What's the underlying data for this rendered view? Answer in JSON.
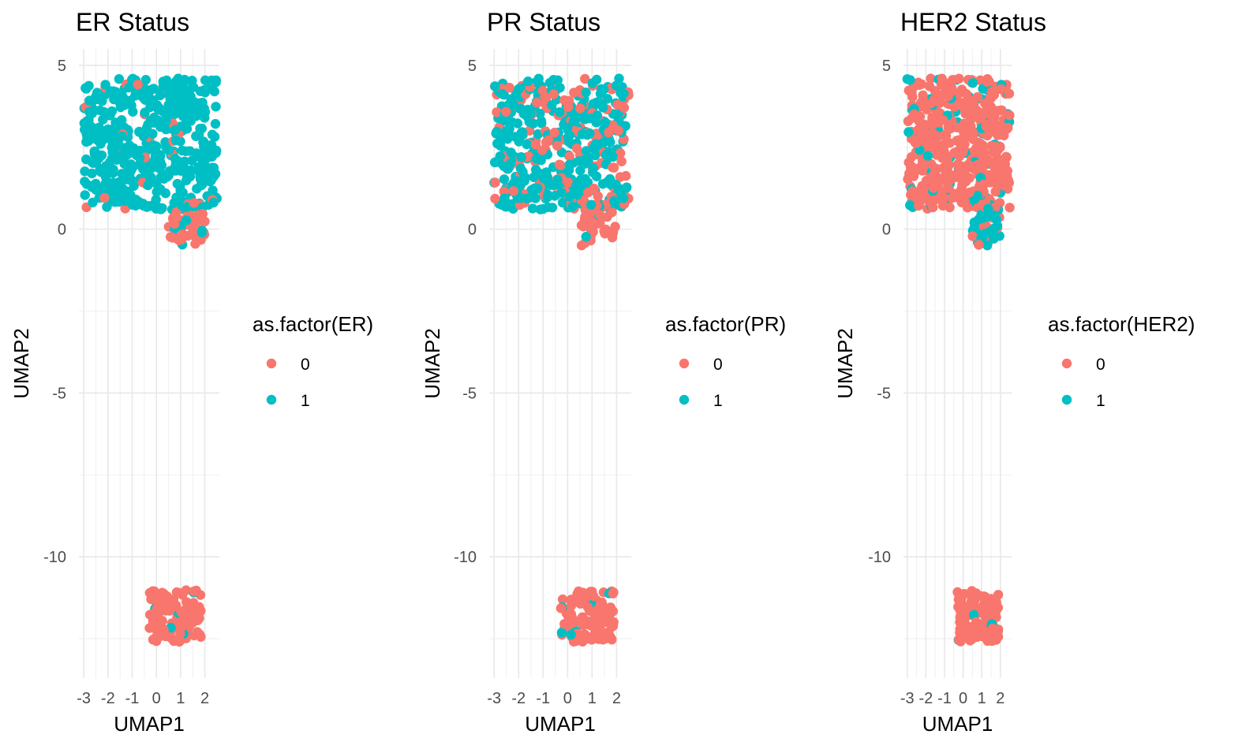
{
  "chart_data": [
    {
      "type": "scatter",
      "title": "ER Status",
      "xlabel": "UMAP1",
      "ylabel": "UMAP2",
      "xlim": [
        -3.2,
        2.6
      ],
      "ylim": [
        -13.7,
        5.5
      ],
      "x_ticks": [
        "-3",
        "-2",
        "-1",
        "0",
        "1",
        "2"
      ],
      "y_ticks": [
        "5",
        "0",
        "-5",
        "-10"
      ],
      "grid": true,
      "legend_title": "as.factor(ER)",
      "legend_position": "right",
      "categories": [
        "0",
        "1"
      ],
      "colors": {
        "0": "#F8766D",
        "1": "#00BFC4"
      },
      "clusters": [
        {
          "x": [
            -3.0,
            2.5
          ],
          "y": [
            0.6,
            4.6
          ],
          "counts": {
            "0": 20,
            "1": 480
          }
        },
        {
          "x": [
            0.5,
            2.0
          ],
          "y": [
            -0.5,
            0.8
          ],
          "counts": {
            "0": 40,
            "1": 8
          }
        },
        {
          "x": [
            -0.3,
            1.9
          ],
          "y": [
            -12.6,
            -11.0
          ],
          "counts": {
            "0": 110,
            "1": 6
          }
        }
      ]
    },
    {
      "type": "scatter",
      "title": "PR Status",
      "xlabel": "UMAP1",
      "ylabel": "UMAP2",
      "xlim": [
        -3.2,
        2.6
      ],
      "ylim": [
        -13.7,
        5.5
      ],
      "x_ticks": [
        "-3",
        "-2",
        "-1",
        "0",
        "1",
        "2"
      ],
      "y_ticks": [
        "5",
        "0",
        "-5",
        "-10"
      ],
      "grid": true,
      "legend_title": "as.factor(PR)",
      "legend_position": "right",
      "categories": [
        "0",
        "1"
      ],
      "colors": {
        "0": "#F8766D",
        "1": "#00BFC4"
      },
      "clusters": [
        {
          "x": [
            -3.0,
            2.5
          ],
          "y": [
            0.6,
            4.6
          ],
          "counts": {
            "0": 150,
            "1": 350
          }
        },
        {
          "x": [
            0.5,
            2.0
          ],
          "y": [
            -0.5,
            0.8
          ],
          "counts": {
            "0": 44,
            "1": 4
          }
        },
        {
          "x": [
            -0.3,
            1.9
          ],
          "y": [
            -12.6,
            -11.0
          ],
          "counts": {
            "0": 108,
            "1": 8
          }
        }
      ]
    },
    {
      "type": "scatter",
      "title": "HER2 Status",
      "xlabel": "UMAP1",
      "ylabel": "UMAP2",
      "xlim": [
        -3.2,
        2.6
      ],
      "ylim": [
        -13.7,
        5.5
      ],
      "x_ticks": [
        "-3",
        "-2",
        "-1",
        "0",
        "1",
        "2"
      ],
      "y_ticks": [
        "5",
        "0",
        "-5",
        "-10"
      ],
      "grid": true,
      "legend_title": "as.factor(HER2)",
      "legend_position": "right",
      "categories": [
        "0",
        "1"
      ],
      "colors": {
        "0": "#F8766D",
        "1": "#00BFC4"
      },
      "clusters": [
        {
          "x": [
            -3.0,
            2.5
          ],
          "y": [
            0.6,
            4.6
          ],
          "counts": {
            "0": 440,
            "1": 60
          }
        },
        {
          "x": [
            0.5,
            2.0
          ],
          "y": [
            -0.5,
            0.8
          ],
          "counts": {
            "0": 12,
            "1": 36
          }
        },
        {
          "x": [
            -0.3,
            1.9
          ],
          "y": [
            -12.6,
            -11.0
          ],
          "counts": {
            "0": 110,
            "1": 6
          }
        }
      ]
    }
  ]
}
